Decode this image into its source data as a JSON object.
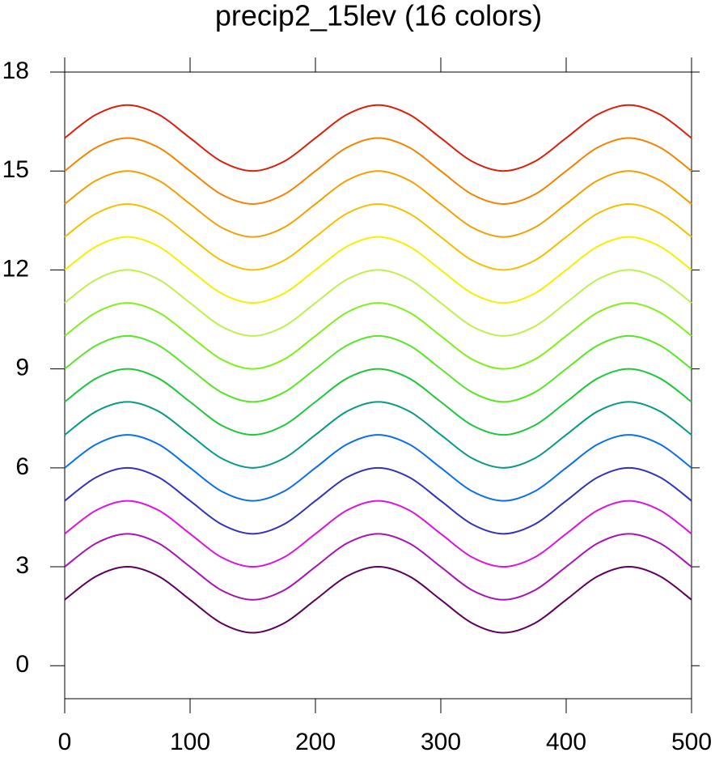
{
  "chart_data": {
    "type": "line",
    "title": "precip2_15lev (16 colors)",
    "x": [
      0,
      25,
      50,
      75,
      100,
      125,
      150,
      175,
      200,
      225,
      250,
      275,
      300,
      325,
      350,
      375,
      400,
      425,
      450,
      475,
      500
    ],
    "xlim": [
      0,
      500
    ],
    "xticks": [
      0,
      100,
      200,
      300,
      400,
      500
    ],
    "ylim": [
      -1,
      18
    ],
    "yticks": [
      0,
      3,
      6,
      9,
      12,
      15,
      18
    ],
    "series": [
      {
        "color": "#5c005c",
        "values": [
          2,
          2.71,
          3,
          2.71,
          2,
          1.29,
          1,
          1.29,
          2,
          2.71,
          3,
          2.71,
          2,
          1.29,
          1,
          1.29,
          2,
          2.71,
          3,
          2.71,
          2
        ]
      },
      {
        "color": "#a814b4",
        "values": [
          3,
          3.71,
          4,
          3.71,
          3,
          2.29,
          2,
          2.29,
          3,
          3.71,
          4,
          3.71,
          3,
          2.29,
          2,
          2.29,
          3,
          3.71,
          4,
          3.71,
          3
        ]
      },
      {
        "color": "#dc14dc",
        "values": [
          4,
          4.71,
          5,
          4.71,
          4,
          3.29,
          3,
          3.29,
          4,
          4.71,
          5,
          4.71,
          4,
          3.29,
          3,
          3.29,
          4,
          4.71,
          5,
          4.71,
          4
        ]
      },
      {
        "color": "#3232c0",
        "values": [
          5,
          5.71,
          6,
          5.71,
          5,
          4.29,
          4,
          4.29,
          5,
          5.71,
          6,
          5.71,
          5,
          4.29,
          4,
          4.29,
          5,
          5.71,
          6,
          5.71,
          5
        ]
      },
      {
        "color": "#0a6ef0",
        "values": [
          6,
          6.71,
          7,
          6.71,
          6,
          5.29,
          5,
          5.29,
          6,
          6.71,
          7,
          6.71,
          6,
          5.29,
          5,
          5.29,
          6,
          6.71,
          7,
          6.71,
          6
        ]
      },
      {
        "color": "#0a9a82",
        "values": [
          7,
          7.71,
          8,
          7.71,
          7,
          6.29,
          6,
          6.29,
          7,
          7.71,
          8,
          7.71,
          7,
          6.29,
          6,
          6.29,
          7,
          7.71,
          8,
          7.71,
          7
        ]
      },
      {
        "color": "#1ec83c",
        "values": [
          8,
          8.71,
          9,
          8.71,
          8,
          7.29,
          7,
          7.29,
          8,
          8.71,
          9,
          8.71,
          8,
          7.29,
          7,
          7.29,
          8,
          8.71,
          9,
          8.71,
          8
        ]
      },
      {
        "color": "#5ae628",
        "values": [
          9,
          9.71,
          10,
          9.71,
          9,
          8.29,
          8,
          8.29,
          9,
          9.71,
          10,
          9.71,
          9,
          8.29,
          8,
          8.29,
          9,
          9.71,
          10,
          9.71,
          9
        ]
      },
      {
        "color": "#82f01e",
        "values": [
          10,
          10.71,
          11,
          10.71,
          10,
          9.29,
          9,
          9.29,
          10,
          10.71,
          11,
          10.71,
          10,
          9.29,
          9,
          9.29,
          10,
          10.71,
          11,
          10.71,
          10
        ]
      },
      {
        "color": "#bef050",
        "values": [
          11,
          11.71,
          12,
          11.71,
          11,
          10.29,
          10,
          10.29,
          11,
          11.71,
          12,
          11.71,
          11,
          10.29,
          10,
          10.29,
          11,
          11.71,
          12,
          11.71,
          11
        ]
      },
      {
        "color": "#f5f000",
        "values": [
          12,
          12.71,
          13,
          12.71,
          12,
          11.29,
          11,
          11.29,
          12,
          12.71,
          13,
          12.71,
          12,
          11.29,
          11,
          11.29,
          12,
          12.71,
          13,
          12.71,
          12
        ]
      },
      {
        "color": "#f5c000",
        "values": [
          13,
          13.71,
          14,
          13.71,
          13,
          12.29,
          12,
          12.29,
          13,
          13.71,
          14,
          13.71,
          13,
          12.29,
          12,
          12.29,
          13,
          13.71,
          14,
          13.71,
          13
        ]
      },
      {
        "color": "#f5a000",
        "values": [
          14,
          14.71,
          15,
          14.71,
          14,
          13.29,
          13,
          13.29,
          14,
          14.71,
          15,
          14.71,
          14,
          13.29,
          13,
          13.29,
          14,
          14.71,
          15,
          14.71,
          14
        ]
      },
      {
        "color": "#f58200",
        "values": [
          15,
          15.71,
          16,
          15.71,
          15,
          14.29,
          14,
          14.29,
          15,
          15.71,
          16,
          15.71,
          15,
          14.29,
          14,
          14.29,
          15,
          15.71,
          16,
          15.71,
          15
        ]
      },
      {
        "color": "#dc1e0a",
        "values": [
          16,
          16.71,
          17,
          16.71,
          16,
          15.29,
          15,
          15.29,
          16,
          16.71,
          17,
          16.71,
          16,
          15.29,
          15,
          15.29,
          16,
          16.71,
          17,
          16.71,
          16
        ]
      }
    ]
  }
}
